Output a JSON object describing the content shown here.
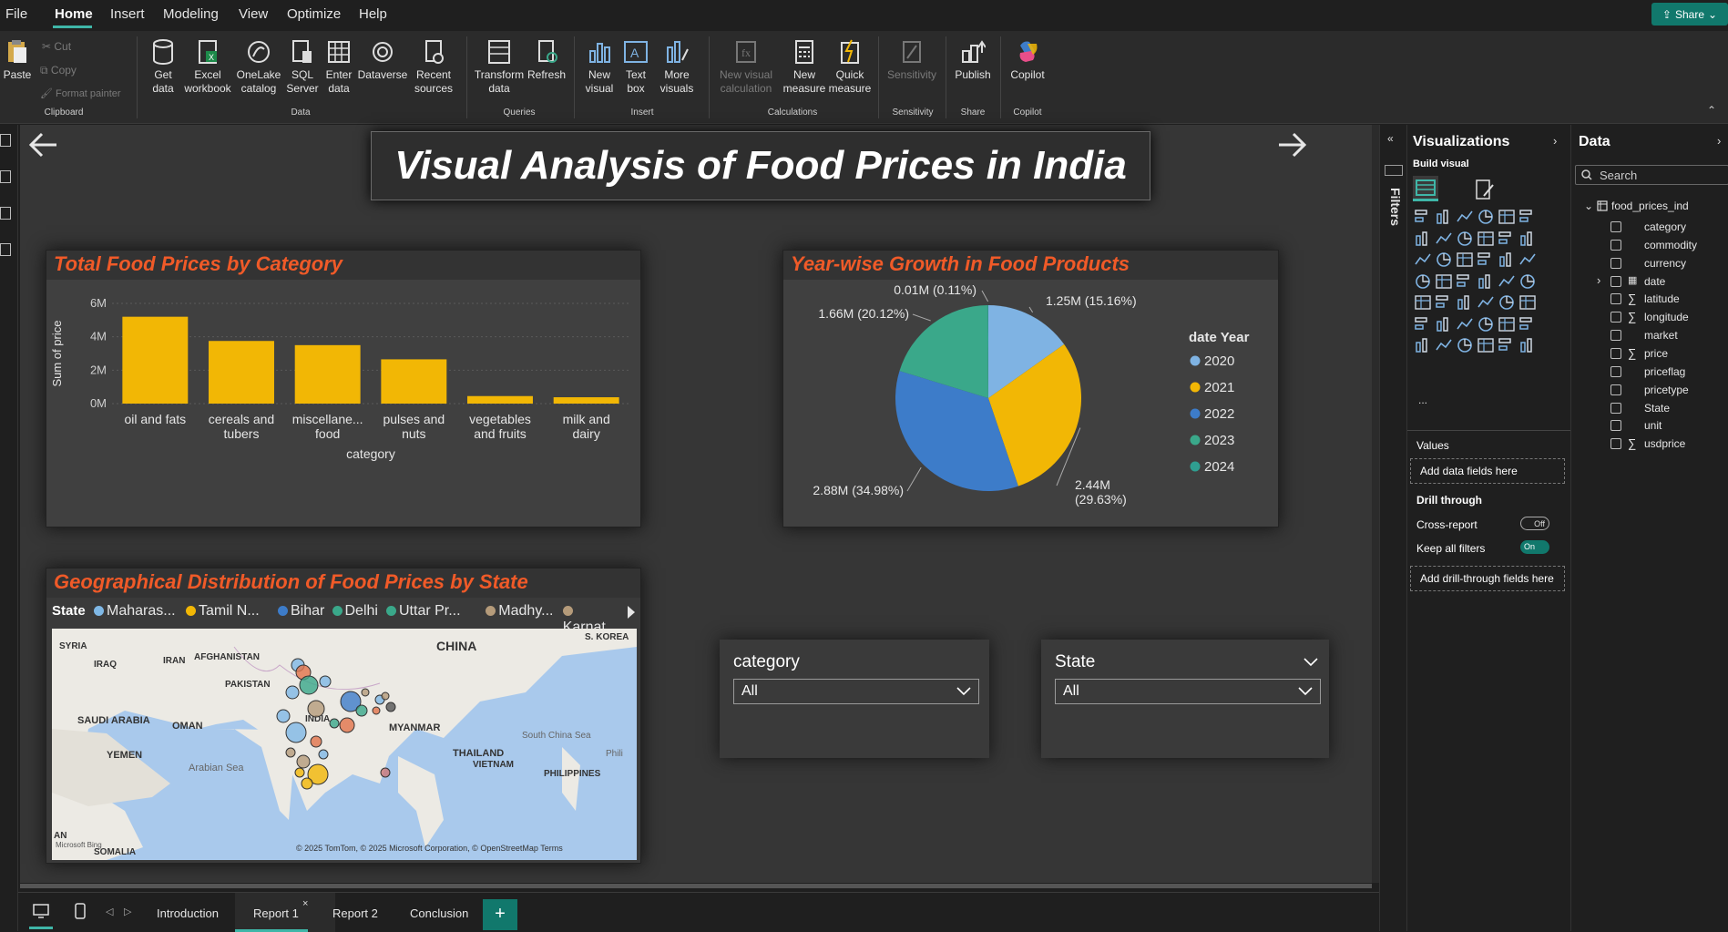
{
  "menu": {
    "items": [
      "File",
      "Home",
      "Insert",
      "Modeling",
      "View",
      "Optimize",
      "Help"
    ],
    "share_label": "Share"
  },
  "ribbon": {
    "clipboard": {
      "paste": "Paste",
      "cut": "Cut",
      "copy": "Copy",
      "format_painter": "Format painter",
      "group": "Clipboard"
    },
    "data": {
      "get_data": "Get data",
      "excel": "Excel workbook",
      "onelake": "OneLake catalog",
      "sql": "SQL Server",
      "enter": "Enter data",
      "dataverse": "Dataverse",
      "recent": "Recent sources",
      "group": "Data"
    },
    "queries": {
      "transform": "Transform data",
      "refresh": "Refresh",
      "group": "Queries"
    },
    "insert": {
      "new_visual": "New visual",
      "text_box": "Text box",
      "more_visuals": "More visuals",
      "group": "Insert"
    },
    "calculations": {
      "new_visual_calc": "New visual calculation",
      "new_measure": "New measure",
      "quick_measure": "Quick measure",
      "group": "Calculations"
    },
    "sensitivity": {
      "label": "Sensitivity",
      "group": "Sensitivity"
    },
    "share": {
      "publish": "Publish",
      "group": "Share"
    },
    "copilot": {
      "label": "Copilot",
      "group": "Copilot"
    }
  },
  "report": {
    "title": "Visual Analysis of Food Prices in India",
    "bar_visual": {
      "title": "Total Food Prices by Category"
    },
    "pie_visual": {
      "title": "Year-wise Growth in Food Products"
    },
    "map_visual": {
      "title": "Geographical Distribution of Food Prices by State",
      "legend_title": "State",
      "legend": [
        {
          "name": "Maharas...",
          "color": "#7fb8e6"
        },
        {
          "name": "Tamil N...",
          "color": "#f2b705"
        },
        {
          "name": "Bihar",
          "color": "#3d7cc9"
        },
        {
          "name": "Delhi",
          "color": "#3aa88a"
        },
        {
          "name": "Uttar Pr...",
          "color": "#3aa88a"
        },
        {
          "name": "Madhy...",
          "color": "#b59b7a"
        },
        {
          "name": "Karnat...",
          "color": "#b59b7a"
        }
      ],
      "labels": {
        "china": "CHINA",
        "skorea": "S. KOREA",
        "syria": "SYRIA",
        "iraq": "IRAQ",
        "iran": "IRAN",
        "afghanistan": "AFGHANISTAN",
        "pakistan": "PAKISTAN",
        "saudi": "SAUDI ARABIA",
        "oman": "OMAN",
        "india": "INDIA",
        "myanmar": "MYANMAR",
        "yemen": "YEMEN",
        "thailand": "THAILAND",
        "vietnam": "VIETNAM",
        "philippines": "PHILIPPINES",
        "south_china_sea": "South China Sea",
        "arabian_sea": "Arabian Sea",
        "somalia": "SOMALIA",
        "phili": "Phili",
        "an": "AN",
        "credits": "© 2025 TomTom, © 2025 Microsoft Corporation, © OpenStreetMap Terms",
        "bing": "Microsoft Bing"
      }
    },
    "slicers": [
      {
        "title": "category",
        "value": "All"
      },
      {
        "title": "State",
        "value": "All"
      }
    ]
  },
  "chart_data": [
    {
      "type": "bar",
      "title": "Total Food Prices by Category",
      "categories": [
        "oil and fats",
        "cereals and tubers",
        "miscellaneous food",
        "pulses and nuts",
        "vegetables and fruits",
        "milk and dairy"
      ],
      "category_labels": [
        [
          "oil and fats"
        ],
        [
          "cereals and",
          "tubers"
        ],
        [
          "miscellane...",
          "food"
        ],
        [
          "pulses and",
          "nuts"
        ],
        [
          "vegetables",
          "and fruits"
        ],
        [
          "milk and",
          "dairy"
        ]
      ],
      "values": [
        5200000,
        3750000,
        3500000,
        2650000,
        450000,
        380000
      ],
      "xlabel": "category",
      "ylabel": "Sum of price",
      "yticks": [
        "0M",
        "2M",
        "4M",
        "6M"
      ],
      "ylim": [
        0,
        6000000
      ],
      "color": "#f2b705"
    },
    {
      "type": "pie",
      "title": "Year-wise Growth in Food Products",
      "legend_title": "date Year",
      "legend_position": "right",
      "slices": [
        {
          "label": "2020",
          "value": 1250000,
          "text": "1.25M (15.16%)",
          "color": "#7fb3e3"
        },
        {
          "label": "2021",
          "value": 2440000,
          "text": "2.44M (29.63%)",
          "color": "#f2b705"
        },
        {
          "label": "2022",
          "value": 2880000,
          "text": "2.88M (34.98%)",
          "color": "#3d7cc9"
        },
        {
          "label": "2023",
          "value": 1660000,
          "text": "1.66M (20.12%)",
          "color": "#3aa88a"
        },
        {
          "label": "2024",
          "value": 10000,
          "text": "0.01M (0.11%)",
          "color": "#2f9e90"
        }
      ]
    }
  ],
  "tabs": {
    "items": [
      "Introduction",
      "Report 1",
      "Report 2",
      "Conclusion"
    ],
    "active": "Report 1",
    "add": "+"
  },
  "filters": {
    "label": "Filters"
  },
  "visualizations": {
    "title": "Visualizations",
    "build_visual": "Build visual",
    "values": "Values",
    "add_data_fields": "Add data fields here",
    "drill_through": "Drill through",
    "cross_report": "Cross-report",
    "cross_report_state": "Off",
    "keep_all_filters": "Keep all filters",
    "keep_all_filters_state": "On",
    "add_drill": "Add drill-through fields here",
    "more": "..."
  },
  "data_pane": {
    "title": "Data",
    "search_placeholder": "Search",
    "table": "food_prices_ind",
    "fields": [
      {
        "name": "category",
        "sigma": ""
      },
      {
        "name": "commodity",
        "sigma": ""
      },
      {
        "name": "currency",
        "sigma": ""
      },
      {
        "name": "date",
        "sigma": ""
      },
      {
        "name": "latitude",
        "sigma": "∑"
      },
      {
        "name": "longitude",
        "sigma": "∑"
      },
      {
        "name": "market",
        "sigma": ""
      },
      {
        "name": "price",
        "sigma": "∑"
      },
      {
        "name": "priceflag",
        "sigma": ""
      },
      {
        "name": "pricetype",
        "sigma": ""
      },
      {
        "name": "State",
        "sigma": ""
      },
      {
        "name": "unit",
        "sigma": ""
      },
      {
        "name": "usdprice",
        "sigma": "∑"
      }
    ]
  }
}
